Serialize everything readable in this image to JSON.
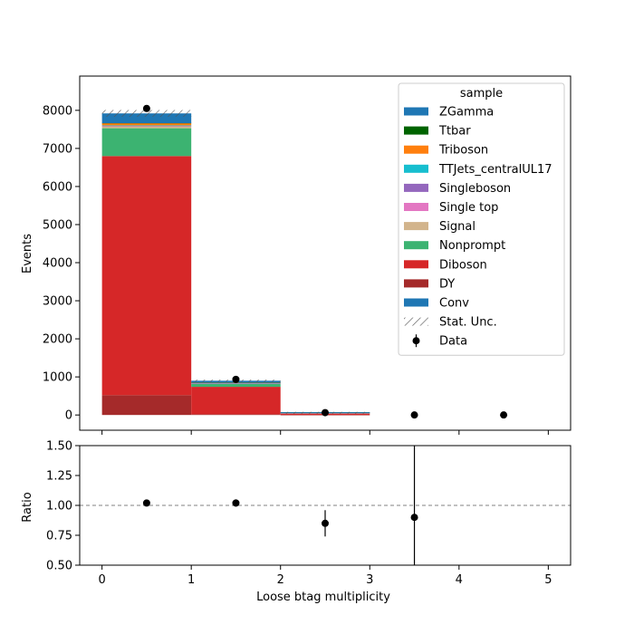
{
  "chart_data": [
    {
      "type": "bar",
      "stacked": true,
      "xlabel": "",
      "ylabel": "Events",
      "xlim": [
        -0.25,
        5.25
      ],
      "ylim": [
        -400,
        8900
      ],
      "xticks": [
        0,
        1,
        2,
        3,
        4,
        5
      ],
      "yticks": [
        0,
        1000,
        2000,
        3000,
        4000,
        5000,
        6000,
        7000,
        8000
      ],
      "bin_edges": [
        0,
        1,
        2,
        3,
        4,
        5
      ],
      "series": [
        {
          "name": "DY",
          "color": "#a52a2a",
          "values": [
            520,
            20,
            3,
            0,
            0
          ]
        },
        {
          "name": "Diboson",
          "color": "#d62728",
          "values": [
            6280,
            720,
            35,
            0,
            0
          ]
        },
        {
          "name": "Nonprompt",
          "color": "#3cb371",
          "values": [
            730,
            80,
            10,
            0,
            0
          ]
        },
        {
          "name": "Signal",
          "color": "#d2b48c",
          "values": [
            50,
            8,
            2,
            0,
            0
          ]
        },
        {
          "name": "Single top",
          "color": "#e377c2",
          "values": [
            10,
            5,
            3,
            0,
            0
          ]
        },
        {
          "name": "Singleboson",
          "color": "#9467bd",
          "values": [
            5,
            2,
            0,
            0,
            0
          ]
        },
        {
          "name": "TTJets_centralUL17",
          "color": "#17becf",
          "values": [
            10,
            10,
            7,
            0,
            0
          ]
        },
        {
          "name": "Triboson",
          "color": "#ff7f0e",
          "values": [
            60,
            5,
            0,
            0,
            0
          ]
        },
        {
          "name": "Ttbar",
          "color": "#006400",
          "values": [
            5,
            5,
            5,
            0,
            0
          ]
        },
        {
          "name": "ZGamma",
          "color": "#1f77b4",
          "values": [
            5,
            5,
            2,
            0,
            0
          ]
        },
        {
          "name": "Conv",
          "color": "#1f77b4",
          "values": [
            245,
            40,
            8,
            0,
            0
          ]
        }
      ],
      "stat_unc": [
        90,
        30,
        8,
        0,
        0
      ],
      "data": {
        "name": "Data",
        "x": [
          0.5,
          1.5,
          2.5,
          3.5,
          4.5
        ],
        "y": [
          8050,
          935,
          62,
          0,
          0
        ]
      },
      "legend": {
        "title": "sample",
        "placement": "top-right",
        "entries": [
          {
            "label": "ZGamma",
            "kind": "patch",
            "color": "#1f77b4"
          },
          {
            "label": "Ttbar",
            "kind": "patch",
            "color": "#006400"
          },
          {
            "label": "Triboson",
            "kind": "patch",
            "color": "#ff7f0e"
          },
          {
            "label": "TTJets_centralUL17",
            "kind": "patch",
            "color": "#17becf"
          },
          {
            "label": "Singleboson",
            "kind": "patch",
            "color": "#9467bd"
          },
          {
            "label": "Single top",
            "kind": "patch",
            "color": "#e377c2"
          },
          {
            "label": "Signal",
            "kind": "patch",
            "color": "#d2b48c"
          },
          {
            "label": "Nonprompt",
            "kind": "patch",
            "color": "#3cb371"
          },
          {
            "label": "Diboson",
            "kind": "patch",
            "color": "#d62728"
          },
          {
            "label": "DY",
            "kind": "patch",
            "color": "#a52a2a"
          },
          {
            "label": "Conv",
            "kind": "patch",
            "color": "#1f77b4"
          },
          {
            "label": "Stat. Unc.",
            "kind": "hatch",
            "color": "#808080"
          },
          {
            "label": "Data",
            "kind": "errorpoint",
            "color": "#000000"
          }
        ]
      }
    },
    {
      "type": "scatter",
      "xlabel": "Loose btag multiplicity",
      "ylabel": "Ratio",
      "xlim": [
        -0.25,
        5.25
      ],
      "ylim": [
        0.5,
        1.5
      ],
      "xticks": [
        0,
        1,
        2,
        3,
        4,
        5
      ],
      "yticks": [
        "0.50",
        "0.75",
        "1.00",
        "1.25",
        "1.50"
      ],
      "reference_line": 1.0,
      "x": [
        0.5,
        1.5,
        2.5,
        3.5
      ],
      "y": [
        1.02,
        1.02,
        0.85,
        0.9
      ],
      "yerr_low": [
        0.01,
        0.03,
        0.11,
        0.9
      ],
      "yerr_high": [
        0.01,
        0.03,
        0.11,
        0.9
      ]
    }
  ]
}
